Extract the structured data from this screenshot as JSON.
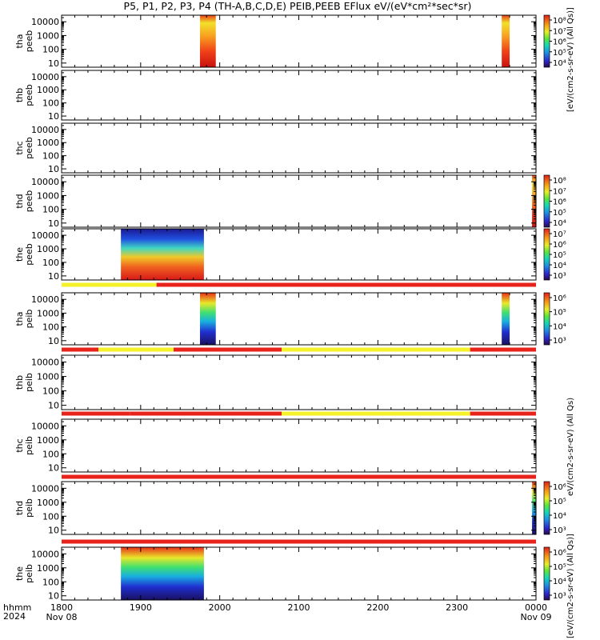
{
  "title": "P5, P1, P2, P3, P4 (TH-A,B,C,D,E) PEIB,PEEB EFlux eV/(eV*cm²*sec*sr)",
  "colors": {
    "flag_red": "#e8231c",
    "flag_yellow": "#f6f22a",
    "background": "#ffffff"
  },
  "colorbar_titles": {
    "top": "[eV/(cm2-s-sr-eV) (All Qs)]",
    "middle": "eV/(cm2-s-sr-eV) (All Qs)",
    "bottom": "[eV/(cm2-s-sr-eV) (All Qs)]"
  },
  "chart_data": [
    {
      "type": "heatmap",
      "name": "tha peeb",
      "ylabel": [
        "tha",
        "peeb"
      ],
      "ylim": [
        5,
        30000
      ],
      "ytick_labels": [
        "10000",
        "1000",
        "100",
        "10"
      ],
      "scale": "log",
      "data_intervals": [
        [
          "19:45",
          "19:57"
        ],
        [
          "23:34",
          "23:40"
        ]
      ],
      "colorbar": {
        "ticks": [
          "10⁸",
          "10⁷",
          "10⁶",
          "10⁵",
          "10⁴"
        ]
      }
    },
    {
      "type": "heatmap",
      "name": "thb peeb",
      "ylabel": [
        "thb",
        "peeb"
      ],
      "ylim": [
        5,
        30000
      ],
      "ytick_labels": [
        "10000",
        "1000",
        "100",
        "10"
      ],
      "scale": "log",
      "data_intervals": []
    },
    {
      "type": "heatmap",
      "name": "thc peeb",
      "ylabel": [
        "thc",
        "peeb"
      ],
      "ylim": [
        5,
        30000
      ],
      "ytick_labels": [
        "10000",
        "1000",
        "100",
        "10"
      ],
      "scale": "log",
      "data_intervals": []
    },
    {
      "type": "heatmap",
      "name": "thd peeb",
      "ylabel": [
        "thd",
        "peeb"
      ],
      "ylim": [
        5,
        30000
      ],
      "ytick_labels": [
        "10000",
        "1000",
        "100",
        "10"
      ],
      "scale": "log",
      "data_intervals": [
        [
          "23:57",
          "24:00"
        ]
      ],
      "colorbar": {
        "ticks": [
          "10⁸",
          "10⁷",
          "10⁶",
          "10⁵",
          "10⁴"
        ]
      }
    },
    {
      "type": "heatmap",
      "name": "the peeb",
      "ylabel": [
        "the",
        "peeb"
      ],
      "ylim": [
        5,
        30000
      ],
      "ytick_labels": [
        "10000",
        "1000",
        "100",
        "10"
      ],
      "scale": "log",
      "data_intervals": [
        [
          "18:45",
          "19:48"
        ]
      ],
      "colorbar": {
        "ticks": [
          "10⁷",
          "10⁶",
          "10⁵",
          "10⁴",
          "10³"
        ]
      }
    },
    {
      "type": "heatmap",
      "name": "tha peib",
      "ylabel": [
        "tha",
        "peib"
      ],
      "ylim": [
        5,
        30000
      ],
      "ytick_labels": [
        "10000",
        "1000",
        "100",
        "10"
      ],
      "scale": "log",
      "data_intervals": [
        [
          "19:45",
          "19:57"
        ],
        [
          "23:34",
          "23:40"
        ]
      ],
      "colorbar": {
        "ticks": [
          "10⁶",
          "10⁵",
          "10⁴",
          "10³"
        ]
      }
    },
    {
      "type": "heatmap",
      "name": "thb peib",
      "ylabel": [
        "thb",
        "peib"
      ],
      "ylim": [
        5,
        30000
      ],
      "ytick_labels": [
        "10000",
        "1000",
        "100",
        "10"
      ],
      "scale": "log",
      "data_intervals": []
    },
    {
      "type": "heatmap",
      "name": "thc peib",
      "ylabel": [
        "thc",
        "peib"
      ],
      "ylim": [
        5,
        30000
      ],
      "ytick_labels": [
        "10000",
        "1000",
        "100",
        "10"
      ],
      "scale": "log",
      "data_intervals": []
    },
    {
      "type": "heatmap",
      "name": "thd peib",
      "ylabel": [
        "thd",
        "peib"
      ],
      "ylim": [
        5,
        30000
      ],
      "ytick_labels": [
        "10000",
        "1000",
        "100",
        "10"
      ],
      "scale": "log",
      "data_intervals": [
        [
          "23:57",
          "24:00"
        ]
      ],
      "colorbar": {
        "ticks": [
          "10⁶",
          "10⁵",
          "10⁴",
          "10³"
        ]
      }
    },
    {
      "type": "heatmap",
      "name": "the peib",
      "ylabel": [
        "the",
        "peib"
      ],
      "ylim": [
        5,
        30000
      ],
      "ytick_labels": [
        "10000",
        "1000",
        "100",
        "10"
      ],
      "scale": "log",
      "data_intervals": [
        [
          "18:45",
          "19:48"
        ]
      ],
      "colorbar": {
        "ticks": [
          "10⁶",
          "10⁵",
          "10⁴",
          "10³"
        ]
      }
    }
  ],
  "mode_bars": [
    {
      "name": "mode-bar-1",
      "segments": [
        {
          "from": "18:00",
          "to": "19:12",
          "color": "yellow"
        },
        {
          "from": "19:12",
          "to": "24:00",
          "color": "red"
        }
      ]
    },
    {
      "name": "mode-bar-2",
      "segments": [
        {
          "from": "18:00",
          "to": "18:28",
          "color": "red"
        },
        {
          "from": "18:28",
          "to": "19:25",
          "color": "yellow"
        },
        {
          "from": "19:25",
          "to": "20:47",
          "color": "red"
        },
        {
          "from": "20:47",
          "to": "23:10",
          "color": "yellow"
        },
        {
          "from": "23:10",
          "to": "24:00",
          "color": "red"
        }
      ]
    },
    {
      "name": "mode-bar-3",
      "segments": [
        {
          "from": "18:00",
          "to": "18:52",
          "color": "red"
        },
        {
          "from": "18:52",
          "to": "20:26",
          "color": "red"
        },
        {
          "from": "20:26",
          "to": "20:47",
          "color": "red"
        },
        {
          "from": "20:47",
          "to": "23:10",
          "color": "yellow"
        },
        {
          "from": "23:10",
          "to": "24:00",
          "color": "red"
        }
      ]
    },
    {
      "name": "mode-bar-4",
      "segments": [
        {
          "from": "18:00",
          "to": "24:00",
          "color": "red"
        }
      ]
    },
    {
      "name": "mode-bar-5",
      "segments": [
        {
          "from": "18:00",
          "to": "24:00",
          "color": "red"
        }
      ]
    }
  ],
  "x_axis": {
    "row1_label": "hhmm",
    "row2_label": "2024",
    "ticks": [
      {
        "hour": 18,
        "label": "1800",
        "sub": "Nov 08"
      },
      {
        "hour": 19,
        "label": "1900",
        "sub": ""
      },
      {
        "hour": 20,
        "label": "2000",
        "sub": ""
      },
      {
        "hour": 21,
        "label": "2100",
        "sub": ""
      },
      {
        "hour": 22,
        "label": "2200",
        "sub": ""
      },
      {
        "hour": 23,
        "label": "2300",
        "sub": ""
      },
      {
        "hour": 24,
        "label": "0000",
        "sub": "Nov 09"
      }
    ]
  }
}
